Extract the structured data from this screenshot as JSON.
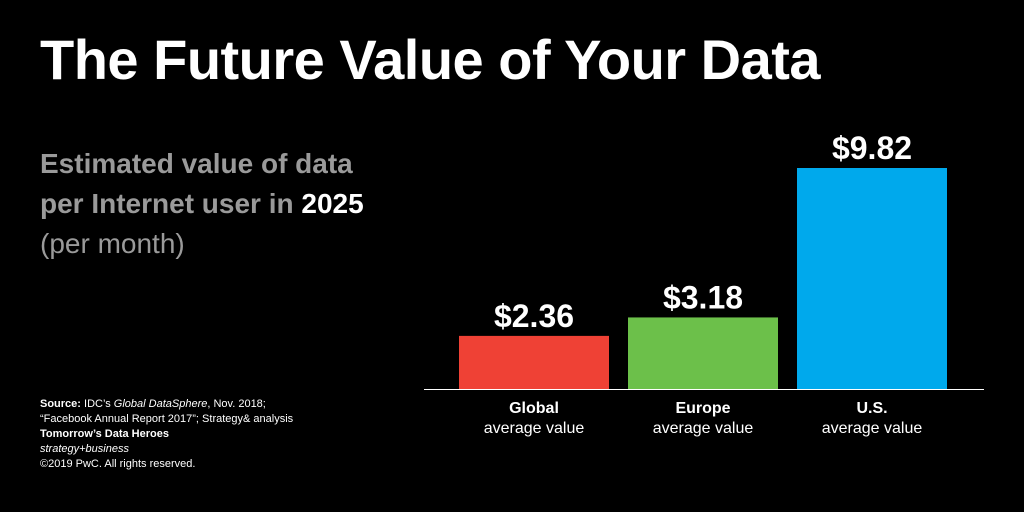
{
  "header": {
    "title": "The Future Value of Your Data"
  },
  "subtitle": {
    "line1": "Estimated value of data",
    "line2_prefix": "per Internet user in",
    "year": "2025",
    "note": "(per month)"
  },
  "footer": {
    "source_label": "Source:",
    "source_prefix": "IDC’s",
    "source_italic": "Global DataSphere",
    "source_suffix": ", Nov. 2018;",
    "source_line2": "“Facebook Annual Report 2017”; Strategy& analysis",
    "series_title": "Tomorrow’s Data Heroes",
    "publication": "strategy+business",
    "copyright": "©2019 PwC. All rights reserved."
  },
  "chart_data": {
    "type": "bar",
    "categories": [
      "Global",
      "Europe",
      "U.S."
    ],
    "category_sublabels": [
      "average value",
      "average value",
      "average value"
    ],
    "values": [
      2.36,
      3.18,
      9.82
    ],
    "data_labels": [
      "$2.36",
      "$3.18",
      "$9.82"
    ],
    "colors": [
      "#ef4135",
      "#6cc04a",
      "#00a9ec"
    ],
    "ylim": [
      0,
      9.82
    ],
    "grid": false,
    "legend": "none"
  }
}
